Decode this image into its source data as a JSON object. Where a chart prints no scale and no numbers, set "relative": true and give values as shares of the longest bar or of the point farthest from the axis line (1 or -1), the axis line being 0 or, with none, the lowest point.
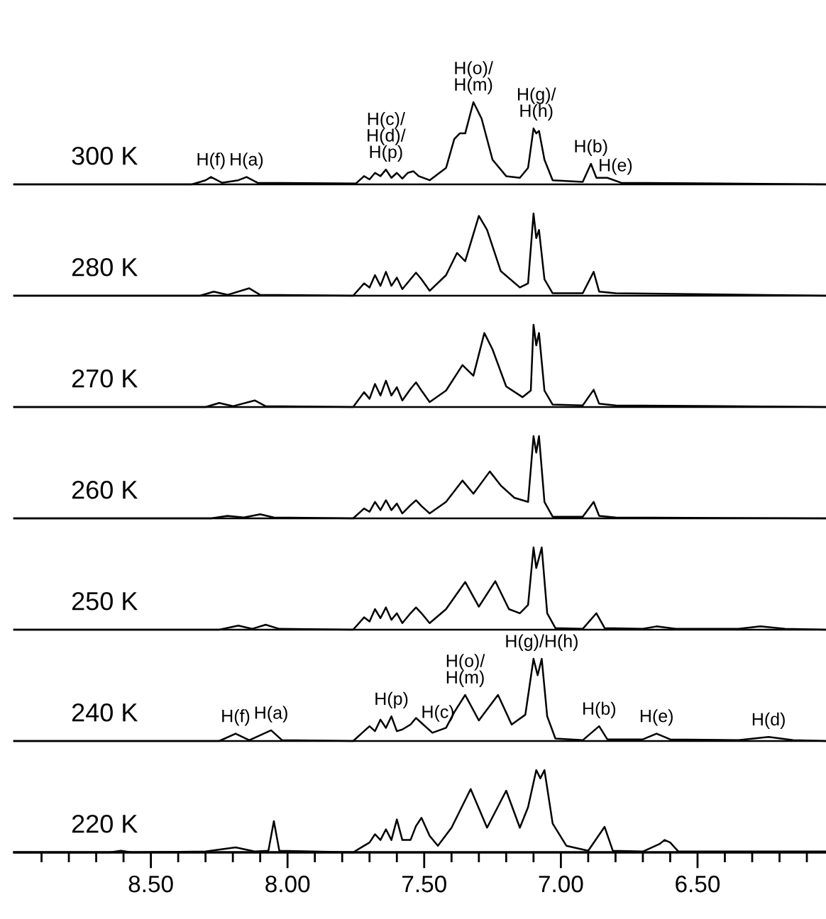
{
  "chart_data": [
    {
      "type": "line",
      "title": "300 K",
      "relative": true,
      "color": "#000000",
      "xlim": [
        9.0,
        6.03
      ],
      "tick_labels": false,
      "x": [
        9.0,
        8.35,
        8.3,
        8.28,
        8.24,
        8.18,
        8.15,
        8.11,
        7.75,
        7.72,
        7.7,
        7.68,
        7.66,
        7.64,
        7.62,
        7.6,
        7.58,
        7.56,
        7.54,
        7.52,
        7.48,
        7.42,
        7.39,
        7.37,
        7.35,
        7.32,
        7.29,
        7.25,
        7.2,
        7.15,
        7.12,
        7.1,
        7.09,
        7.08,
        7.06,
        7.03,
        6.92,
        6.89,
        6.87,
        6.83,
        6.78,
        6.03
      ],
      "values": [
        0,
        0,
        0.05,
        0.09,
        0.02,
        0.05,
        0.09,
        0.02,
        0.01,
        0.1,
        0.06,
        0.14,
        0.1,
        0.18,
        0.08,
        0.14,
        0.07,
        0.14,
        0.16,
        0.1,
        0.05,
        0.2,
        0.55,
        0.62,
        0.62,
        1.0,
        0.8,
        0.3,
        0.1,
        0.08,
        0.2,
        0.68,
        0.62,
        0.65,
        0.3,
        0.05,
        0.03,
        0.25,
        0.08,
        0.08,
        0.02,
        0
      ],
      "annotations": [
        {
          "text": "H(f)",
          "x": 8.28,
          "y": 0.09
        },
        {
          "text": "H(a)",
          "x": 8.15,
          "y": 0.09
        },
        {
          "text": "H(c)/\nH(d)/\nH(p)",
          "x": 7.64,
          "y": 0.18
        },
        {
          "text": "H(o)/\nH(m)",
          "x": 7.32,
          "y": 1.0
        },
        {
          "text": "H(g)/\nH(h)",
          "x": 7.09,
          "y": 0.68
        },
        {
          "text": "H(b)",
          "x": 6.89,
          "y": 0.25
        },
        {
          "text": "H(e)",
          "x": 6.8,
          "y": 0.02
        }
      ]
    },
    {
      "type": "line",
      "title": "280 K",
      "relative": true,
      "color": "#000000",
      "xlim": [
        9.0,
        6.03
      ],
      "tick_labels": false,
      "x": [
        9.0,
        8.32,
        8.27,
        8.22,
        8.14,
        8.1,
        7.76,
        7.72,
        7.7,
        7.68,
        7.66,
        7.64,
        7.62,
        7.6,
        7.58,
        7.55,
        7.53,
        7.51,
        7.48,
        7.42,
        7.38,
        7.35,
        7.3,
        7.27,
        7.22,
        7.15,
        7.12,
        7.1,
        7.09,
        7.08,
        7.06,
        7.03,
        6.92,
        6.88,
        6.86,
        6.8,
        6.03
      ],
      "values": [
        0,
        0,
        0.05,
        0.01,
        0.09,
        0.01,
        0,
        0.15,
        0.1,
        0.25,
        0.12,
        0.29,
        0.12,
        0.22,
        0.08,
        0.2,
        0.28,
        0.2,
        0.06,
        0.25,
        0.52,
        0.42,
        0.97,
        0.8,
        0.3,
        0.1,
        0.15,
        1.0,
        0.7,
        0.8,
        0.2,
        0.03,
        0.03,
        0.29,
        0.05,
        0.03,
        0
      ]
    },
    {
      "type": "line",
      "title": "270 K",
      "relative": true,
      "color": "#000000",
      "xlim": [
        9.0,
        6.03
      ],
      "tick_labels": false,
      "x": [
        9.0,
        8.3,
        8.25,
        8.2,
        8.12,
        8.08,
        7.76,
        7.72,
        7.7,
        7.68,
        7.66,
        7.64,
        7.62,
        7.6,
        7.58,
        7.55,
        7.53,
        7.51,
        7.48,
        7.42,
        7.36,
        7.32,
        7.28,
        7.25,
        7.2,
        7.14,
        7.11,
        7.1,
        7.09,
        7.08,
        7.06,
        7.03,
        6.92,
        6.88,
        6.86,
        6.8,
        6.03
      ],
      "values": [
        0,
        0,
        0.05,
        0.01,
        0.08,
        0.01,
        0,
        0.18,
        0.1,
        0.28,
        0.14,
        0.32,
        0.14,
        0.24,
        0.08,
        0.22,
        0.3,
        0.2,
        0.06,
        0.2,
        0.51,
        0.38,
        0.9,
        0.7,
        0.25,
        0.12,
        0.2,
        1.0,
        0.75,
        0.9,
        0.2,
        0.03,
        0.02,
        0.21,
        0.04,
        0.02,
        0
      ]
    },
    {
      "type": "line",
      "title": "260 K",
      "relative": true,
      "color": "#000000",
      "xlim": [
        9.0,
        6.03
      ],
      "tick_labels": false,
      "x": [
        9.0,
        8.28,
        8.22,
        8.16,
        8.1,
        8.05,
        7.76,
        7.72,
        7.7,
        7.68,
        7.66,
        7.64,
        7.62,
        7.6,
        7.58,
        7.55,
        7.53,
        7.51,
        7.48,
        7.42,
        7.36,
        7.32,
        7.26,
        7.22,
        7.17,
        7.12,
        7.1,
        7.09,
        7.08,
        7.06,
        7.03,
        6.92,
        6.88,
        6.86,
        6.8,
        6.03
      ],
      "values": [
        0,
        0,
        0.03,
        0.01,
        0.05,
        0.01,
        0,
        0.12,
        0.08,
        0.2,
        0.1,
        0.22,
        0.1,
        0.18,
        0.06,
        0.16,
        0.22,
        0.15,
        0.06,
        0.2,
        0.46,
        0.3,
        0.57,
        0.4,
        0.25,
        0.2,
        1.0,
        0.8,
        1.0,
        0.2,
        0.02,
        0.02,
        0.2,
        0.03,
        0.01,
        0
      ]
    },
    {
      "type": "line",
      "title": "250 K",
      "relative": true,
      "color": "#000000",
      "xlim": [
        9.0,
        6.03
      ],
      "tick_labels": false,
      "x": [
        9.0,
        8.25,
        8.18,
        8.13,
        8.08,
        8.03,
        7.76,
        7.72,
        7.7,
        7.68,
        7.66,
        7.64,
        7.62,
        7.6,
        7.58,
        7.55,
        7.53,
        7.51,
        7.48,
        7.42,
        7.35,
        7.3,
        7.24,
        7.19,
        7.15,
        7.12,
        7.1,
        7.09,
        7.07,
        7.05,
        7.02,
        6.92,
        6.87,
        6.84,
        6.7,
        6.65,
        6.58,
        6.35,
        6.27,
        6.18,
        6.03
      ],
      "values": [
        0,
        0,
        0.05,
        0.01,
        0.06,
        0.01,
        0,
        0.15,
        0.1,
        0.25,
        0.14,
        0.27,
        0.12,
        0.2,
        0.08,
        0.2,
        0.27,
        0.2,
        0.08,
        0.25,
        0.58,
        0.28,
        0.59,
        0.25,
        0.2,
        0.3,
        1.0,
        0.75,
        1.0,
        0.2,
        0.02,
        0.01,
        0.2,
        0.02,
        0.01,
        0.04,
        0.01,
        0.01,
        0.04,
        0.01,
        0
      ]
    },
    {
      "type": "line",
      "title": "240 K",
      "relative": true,
      "color": "#000000",
      "xlim": [
        9.0,
        6.03
      ],
      "tick_labels": false,
      "x": [
        9.0,
        8.25,
        8.19,
        8.14,
        8.06,
        8.02,
        7.76,
        7.7,
        7.68,
        7.66,
        7.64,
        7.62,
        7.6,
        7.58,
        7.55,
        7.53,
        7.51,
        7.47,
        7.42,
        7.39,
        7.35,
        7.3,
        7.23,
        7.18,
        7.13,
        7.1,
        7.085,
        7.07,
        7.05,
        7.02,
        6.92,
        6.86,
        6.83,
        6.7,
        6.65,
        6.6,
        6.35,
        6.24,
        6.15,
        6.03
      ],
      "values": [
        0,
        0,
        0.09,
        0.01,
        0.13,
        0.01,
        0,
        0.18,
        0.12,
        0.26,
        0.16,
        0.3,
        0.12,
        0.14,
        0.2,
        0.28,
        0.22,
        0.1,
        0.16,
        0.35,
        0.56,
        0.25,
        0.56,
        0.2,
        0.32,
        1.0,
        0.8,
        1.0,
        0.3,
        0.03,
        0.01,
        0.18,
        0.02,
        0.02,
        0.09,
        0.02,
        0.01,
        0.05,
        0.01,
        0
      ],
      "annotations": [
        {
          "text": "H(f)",
          "x": 8.19,
          "y": 0.09
        },
        {
          "text": "H(a)",
          "x": 8.06,
          "y": 0.13
        },
        {
          "text": "H(p)",
          "x": 7.62,
          "y": 0.3
        },
        {
          "text": "H(c)",
          "x": 7.45,
          "y": 0.14
        },
        {
          "text": "H(o)/\nH(m)",
          "x": 7.35,
          "y": 0.56
        },
        {
          "text": "H(g)/H(h)",
          "x": 7.07,
          "y": 1.0
        },
        {
          "text": "H(b)",
          "x": 6.86,
          "y": 0.18
        },
        {
          "text": "H(e)",
          "x": 6.65,
          "y": 0.09
        },
        {
          "text": "H(d)",
          "x": 6.24,
          "y": 0.05
        }
      ]
    },
    {
      "type": "line",
      "title": "220 K",
      "relative": true,
      "color": "#000000",
      "xlim": [
        9.0,
        6.03
      ],
      "xticks": [
        {
          "value": 8.9,
          "label": null
        },
        {
          "value": 8.8,
          "label": null
        },
        {
          "value": 8.7,
          "label": null
        },
        {
          "value": 8.6,
          "label": null
        },
        {
          "value": 8.5,
          "label": "8.50"
        },
        {
          "value": 8.4,
          "label": null
        },
        {
          "value": 8.3,
          "label": null
        },
        {
          "value": 8.2,
          "label": null
        },
        {
          "value": 8.1,
          "label": null
        },
        {
          "value": 8.0,
          "label": "8.00"
        },
        {
          "value": 7.9,
          "label": null
        },
        {
          "value": 7.8,
          "label": null
        },
        {
          "value": 7.7,
          "label": null
        },
        {
          "value": 7.6,
          "label": null
        },
        {
          "value": 7.5,
          "label": "7.50"
        },
        {
          "value": 7.4,
          "label": null
        },
        {
          "value": 7.3,
          "label": null
        },
        {
          "value": 7.2,
          "label": null
        },
        {
          "value": 7.1,
          "label": null
        },
        {
          "value": 7.0,
          "label": "7.00"
        },
        {
          "value": 6.9,
          "label": null
        },
        {
          "value": 6.8,
          "label": null
        },
        {
          "value": 6.7,
          "label": null
        },
        {
          "value": 6.6,
          "label": null
        },
        {
          "value": 6.5,
          "label": "6.50"
        },
        {
          "value": 6.4,
          "label": null
        },
        {
          "value": 6.3,
          "label": null
        },
        {
          "value": 6.2,
          "label": null
        },
        {
          "value": 6.1,
          "label": null
        }
      ],
      "x": [
        9.0,
        8.65,
        8.61,
        8.57,
        8.3,
        8.19,
        8.12,
        8.07,
        8.05,
        8.03,
        7.76,
        7.7,
        7.68,
        7.66,
        7.64,
        7.62,
        7.6,
        7.58,
        7.55,
        7.53,
        7.51,
        7.48,
        7.45,
        7.4,
        7.33,
        7.27,
        7.2,
        7.15,
        7.12,
        7.09,
        7.075,
        7.06,
        7.03,
        6.98,
        6.9,
        6.84,
        6.81,
        6.7,
        6.64,
        6.62,
        6.6,
        6.57,
        6.03
      ],
      "values": [
        0,
        0,
        0.02,
        0,
        0.01,
        0.06,
        0.01,
        0.02,
        0.38,
        0.02,
        0,
        0.12,
        0.22,
        0.15,
        0.28,
        0.15,
        0.4,
        0.15,
        0.15,
        0.32,
        0.42,
        0.2,
        0.08,
        0.3,
        0.77,
        0.3,
        0.75,
        0.3,
        0.55,
        1.0,
        0.9,
        1.0,
        0.35,
        0.08,
        0.02,
        0.31,
        0.02,
        0.01,
        0.1,
        0.15,
        0.12,
        0.01,
        0.01
      ]
    }
  ]
}
